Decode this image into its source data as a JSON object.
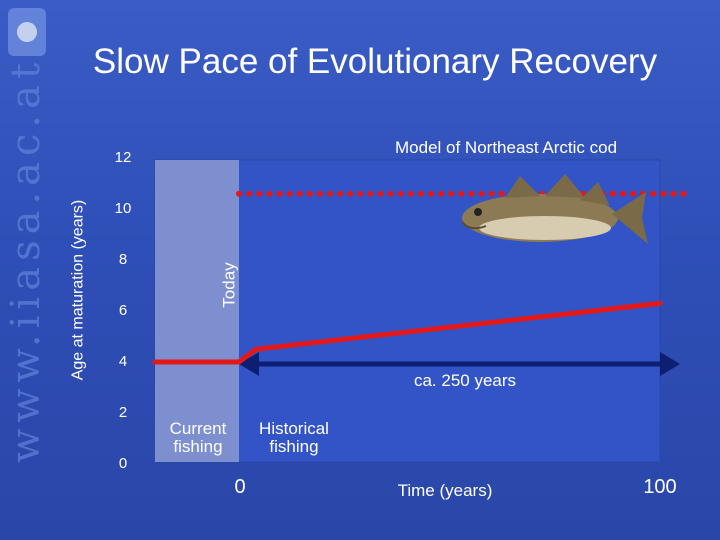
{
  "slide": {
    "title": "Slow Pace of Evolutionary Recovery",
    "watermark": "www.iiasa.ac.at",
    "subtitle": "Model of Northeast Arctic cod"
  },
  "colors": {
    "background": "#2f4fb8",
    "current_fishing_band": "#7e8fd0",
    "plot_area": "#3354c6",
    "trajectory": "#e41818",
    "time_arrow": "#0d1f73"
  },
  "chart_data": {
    "type": "line",
    "xlabel": "Time (years)",
    "ylabel": "Age at maturation (years)",
    "today_label": "Today",
    "ylim": [
      0,
      12
    ],
    "y_ticks": [
      0,
      2,
      4,
      6,
      8,
      10,
      12
    ],
    "x_ticks": [
      {
        "value": 0,
        "label": "0"
      },
      {
        "value": 100,
        "label": "100"
      }
    ],
    "regions": [
      {
        "name": "Current\nfishing",
        "x_from": -17,
        "x_to": 0
      },
      {
        "name": "Historical\nfishing",
        "x_from": 0,
        "x_to": 100
      }
    ],
    "series": [
      {
        "style": "solid",
        "x": [
          -17,
          0,
          4,
          100
        ],
        "y": [
          4.0,
          4.0,
          4.5,
          6.3
        ]
      },
      {
        "style": "dotted",
        "x": [
          0,
          100
        ],
        "y": [
          10.6,
          10.6
        ]
      }
    ],
    "annotation": {
      "text": "ca. 250 years",
      "x_from": 0,
      "x_to": 105,
      "y": 4.0
    }
  }
}
